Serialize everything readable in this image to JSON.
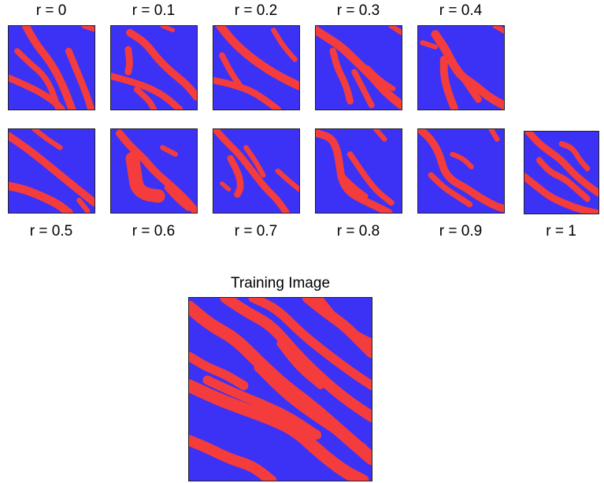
{
  "top_row_labels": [
    "r = 0",
    "r = 0.1",
    "r = 0.2",
    "r = 0.3",
    "r = 0.4"
  ],
  "bottom_row_labels": [
    "r = 0.5",
    "r = 0.6",
    "r = 0.7",
    "r = 0.8",
    "r = 0.9",
    "r = 1"
  ],
  "training_image_title": "Training Image",
  "colors": {
    "background": "#3b32f5",
    "channel": "#f43c3c",
    "frame": "#222222"
  }
}
